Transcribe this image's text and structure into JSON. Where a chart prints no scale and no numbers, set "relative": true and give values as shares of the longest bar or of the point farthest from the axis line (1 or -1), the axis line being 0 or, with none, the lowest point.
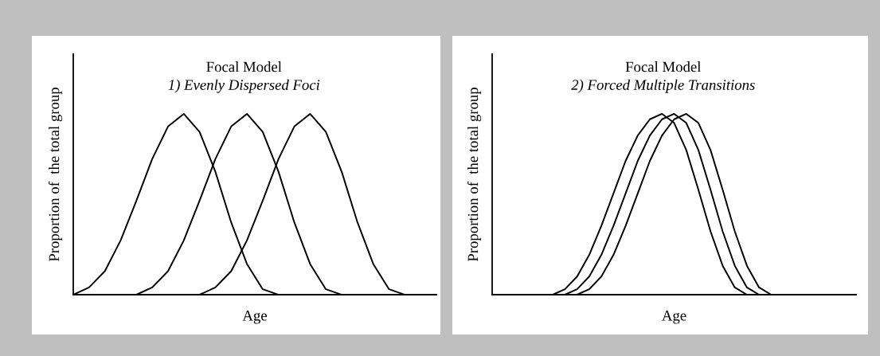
{
  "chart_data": [
    {
      "type": "line",
      "title": "Focal Model",
      "subtitle": "1) Evenly Dispersed Foci",
      "xlabel": "Age",
      "ylabel": "Proportion of  the total group",
      "relative": true,
      "tick_labels": false,
      "grid": false,
      "marker": "none",
      "line_style": "solid",
      "categories": [
        null,
        null,
        null,
        null,
        null,
        null,
        null,
        null,
        null,
        null,
        null,
        null,
        null,
        null,
        null,
        null,
        null,
        null,
        null,
        null,
        null,
        null,
        null,
        null
      ],
      "series": [
        {
          "color": "#000000",
          "values": [
            0,
            0.04,
            0.13,
            0.3,
            0.52,
            0.75,
            0.93,
            1.0,
            0.9,
            0.68,
            0.4,
            0.17,
            0.03,
            0,
            null,
            null,
            null,
            null,
            null,
            null,
            null,
            null,
            null,
            null
          ]
        },
        {
          "color": "#000000",
          "values": [
            null,
            null,
            null,
            null,
            0,
            0.04,
            0.13,
            0.3,
            0.52,
            0.75,
            0.93,
            1.0,
            0.9,
            0.68,
            0.4,
            0.17,
            0.03,
            0,
            null,
            null,
            null,
            null,
            null,
            null
          ]
        },
        {
          "color": "#000000",
          "values": [
            null,
            null,
            null,
            null,
            null,
            null,
            null,
            null,
            0,
            0.04,
            0.13,
            0.3,
            0.52,
            0.75,
            0.93,
            1.0,
            0.9,
            0.68,
            0.4,
            0.17,
            0.03,
            0,
            null,
            null
          ]
        }
      ]
    },
    {
      "type": "line",
      "title": "Focal Model",
      "subtitle": "2) Forced Multiple Transitions",
      "xlabel": "Age",
      "ylabel": "Proportion of  the total group",
      "relative": true,
      "tick_labels": false,
      "grid": false,
      "marker": "none",
      "line_style": "solid",
      "categories": [
        null,
        null,
        null,
        null,
        null,
        null,
        null,
        null,
        null,
        null,
        null,
        null,
        null,
        null,
        null,
        null,
        null,
        null,
        null,
        null,
        null,
        null,
        null,
        null,
        null,
        null,
        null,
        null,
        null,
        null,
        null
      ],
      "series": [
        {
          "color": "#000000",
          "values": [
            null,
            null,
            null,
            null,
            null,
            0,
            0.03,
            0.1,
            0.22,
            0.38,
            0.56,
            0.74,
            0.88,
            0.97,
            1.0,
            0.95,
            0.8,
            0.58,
            0.35,
            0.16,
            0.04,
            0,
            null,
            null,
            null,
            null,
            null,
            null,
            null,
            null,
            null
          ]
        },
        {
          "color": "#000000",
          "values": [
            null,
            null,
            null,
            null,
            null,
            null,
            0,
            0.03,
            0.1,
            0.22,
            0.38,
            0.56,
            0.74,
            0.88,
            0.97,
            1.0,
            0.95,
            0.8,
            0.58,
            0.35,
            0.16,
            0.04,
            0,
            null,
            null,
            null,
            null,
            null,
            null,
            null,
            null
          ]
        },
        {
          "color": "#000000",
          "values": [
            null,
            null,
            null,
            null,
            null,
            null,
            null,
            0,
            0.03,
            0.1,
            0.22,
            0.38,
            0.56,
            0.74,
            0.88,
            0.97,
            1.0,
            0.95,
            0.8,
            0.58,
            0.35,
            0.16,
            0.04,
            0,
            null,
            null,
            null,
            null,
            null,
            null,
            null
          ]
        }
      ]
    }
  ]
}
